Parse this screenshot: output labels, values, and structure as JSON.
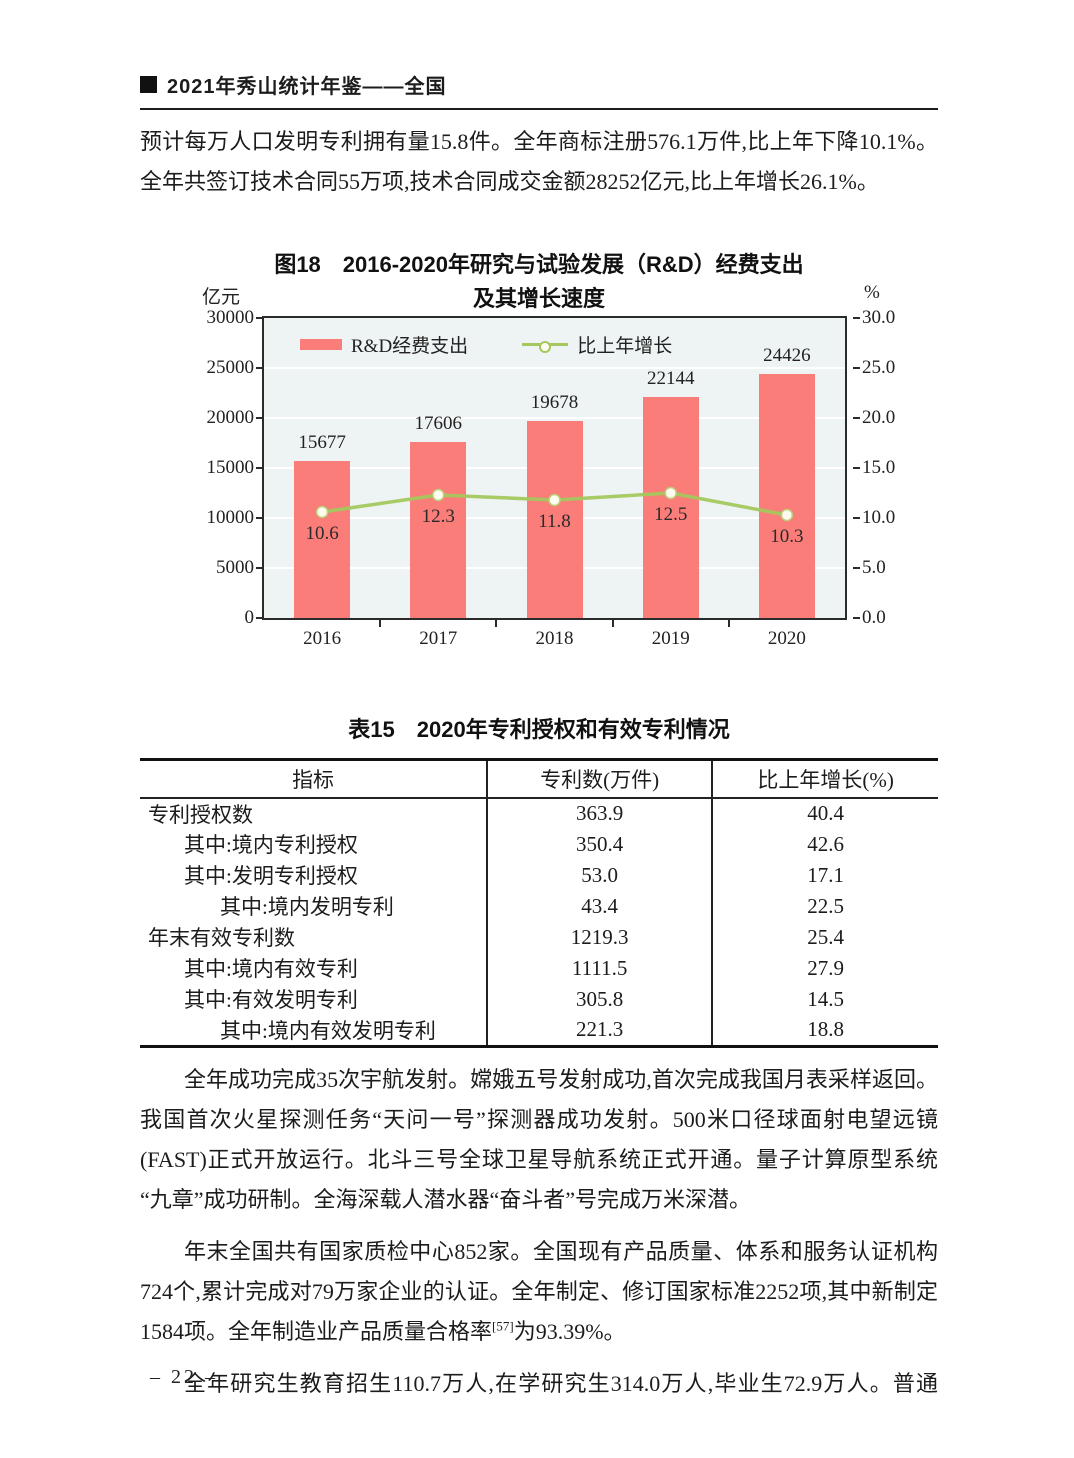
{
  "page": {
    "header": {
      "title": "2021年秀山统计年鉴——全国"
    },
    "footer": {
      "page_number": "– 22 –"
    }
  },
  "paragraphs": {
    "p1": {
      "lines": [
        "预计每万人口发明专利拥有量15.8件。全年商标注册576.1万件,比上年下降10.1%。",
        "全年共签订技术合同55万项,技术合同成交金额28252亿元,比上年增长26.1%。"
      ]
    },
    "p2": {
      "lines": [
        "全年成功完成35次宇航发射。嫦娥五号发射成功,首次完成我国月表采样返回。",
        "我国首次火星探测任务“天问一号”探测器成功发射。500米口径球面射电望远镜",
        "(FAST)正式开放运行。北斗三号全球卫星导航系统正式开通。量子计算原型系统",
        "“九章”成功研制。全海深载人潜水器“奋斗者”号完成万米深潜。"
      ]
    },
    "p3": {
      "line1": "年末全国共有国家质检中心852家。全国现有产品质量、体系和服务认证机构",
      "line2": "724个,累计完成对79万家企业的认证。全年制定、修订国家标准2252项,其中新制定",
      "line3_pre": "1584项。全年制造业产品质量合格率",
      "line3_sup": "[57]",
      "line3_post": "为93.39%。"
    },
    "p4": {
      "lines": [
        "全年研究生教育招生110.7万人,在学研究生314.0万人,毕业生72.9万人。普通"
      ]
    }
  },
  "chart_data": {
    "type": "bar+line",
    "title_line1": "图18　2016-2020年研究与试验发展（R&D）经费支出",
    "title_line2": "及其增长速度",
    "unit_left": "亿元",
    "unit_right": "%",
    "categories": [
      "2016",
      "2017",
      "2018",
      "2019",
      "2020"
    ],
    "series": [
      {
        "name": "R&D经费支出",
        "type": "bar",
        "axis": "left",
        "values": [
          15677,
          17606,
          19678,
          22144,
          24426
        ],
        "color": "#fa7d79"
      },
      {
        "name": "比上年增长",
        "type": "line",
        "axis": "right",
        "values": [
          10.6,
          12.3,
          11.8,
          12.5,
          10.3
        ],
        "color": "#a4c85e"
      }
    ],
    "ylim_left": [
      0,
      30000
    ],
    "ystep_left": 5000,
    "ylim_right": [
      0,
      30
    ],
    "ystep_right": 5,
    "grid": true,
    "legend_position": "top-left-inside",
    "plot_bg": "#eef3f3",
    "marker_fill": "#fdfcee",
    "marker_stroke": "#b9d077"
  },
  "table": {
    "title": "表15　2020年专利授权和有效专利情况",
    "columns": [
      "指标",
      "专利数(万件)",
      "比上年增长(%)"
    ],
    "rows": [
      {
        "indicator": "专利授权数",
        "value": "363.9",
        "growth": "40.4",
        "indent": 0
      },
      {
        "indicator": "其中:境内专利授权",
        "value": "350.4",
        "growth": "42.6",
        "indent": 1
      },
      {
        "indicator": "其中:发明专利授权",
        "value": "53.0",
        "growth": "17.1",
        "indent": 1
      },
      {
        "indicator": "其中:境内发明专利",
        "value": "43.4",
        "growth": "22.5",
        "indent": 2
      },
      {
        "indicator": "年末有效专利数",
        "value": "1219.3",
        "growth": "25.4",
        "indent": 0
      },
      {
        "indicator": "其中:境内有效专利",
        "value": "1111.5",
        "growth": "27.9",
        "indent": 1
      },
      {
        "indicator": "其中:有效发明专利",
        "value": "305.8",
        "growth": "14.5",
        "indent": 1
      },
      {
        "indicator": "其中:境内有效发明专利",
        "value": "221.3",
        "growth": "18.8",
        "indent": 2
      }
    ]
  }
}
